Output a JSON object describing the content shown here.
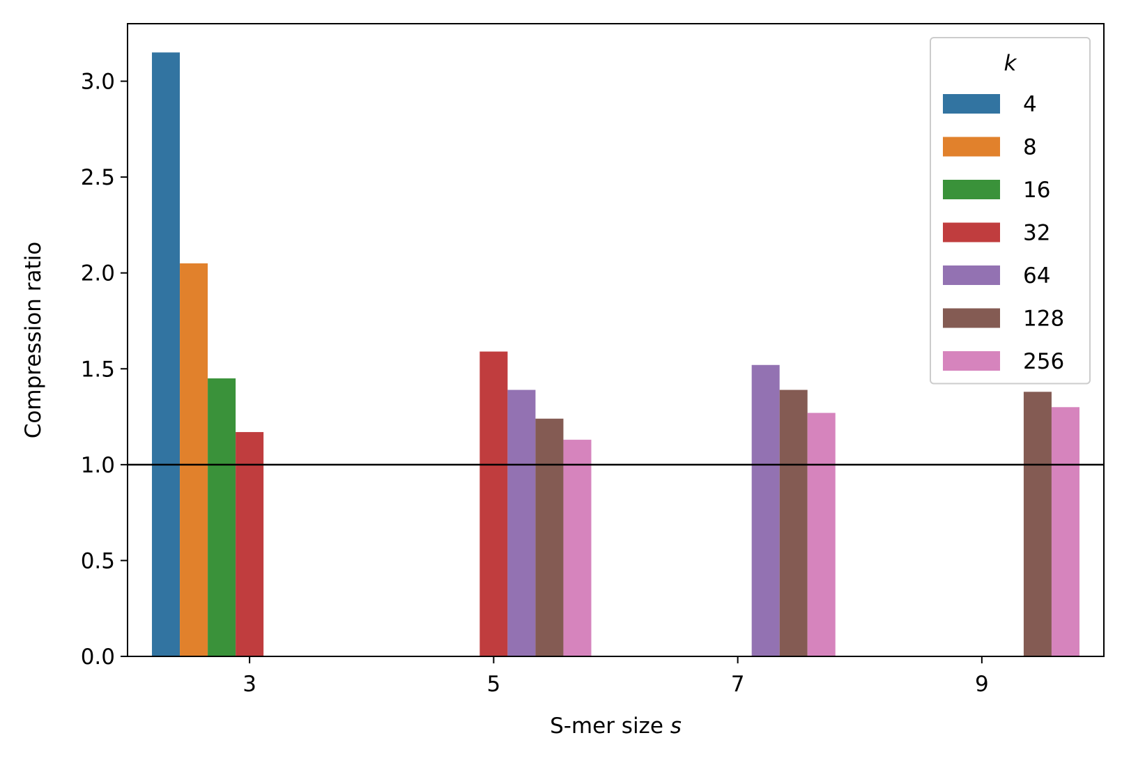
{
  "chart_data": {
    "type": "bar",
    "categories": [
      "3",
      "5",
      "7",
      "9"
    ],
    "xlabel_text": "S-mer size ",
    "xlabel_var": "s",
    "ylabel": "Compression ratio",
    "ylim": [
      0,
      3.3
    ],
    "yticks": [
      "0.0",
      "0.5",
      "1.0",
      "1.5",
      "2.0",
      "2.5",
      "3.0"
    ],
    "reference_line": 1.0,
    "legend_title": "k",
    "legend_position": "top-right",
    "grid": false,
    "series": [
      {
        "name": "4",
        "color": "#3274a1",
        "values": [
          3.15,
          null,
          null,
          null
        ]
      },
      {
        "name": "8",
        "color": "#e1812c",
        "values": [
          2.05,
          null,
          null,
          null
        ]
      },
      {
        "name": "16",
        "color": "#3a923a",
        "values": [
          1.45,
          null,
          null,
          null
        ]
      },
      {
        "name": "32",
        "color": "#c03d3e",
        "values": [
          1.17,
          1.59,
          null,
          null
        ]
      },
      {
        "name": "64",
        "color": "#9372b2",
        "values": [
          null,
          1.39,
          1.52,
          null
        ]
      },
      {
        "name": "128",
        "color": "#845b53",
        "values": [
          null,
          1.24,
          1.39,
          1.38
        ]
      },
      {
        "name": "256",
        "color": "#d684bd",
        "values": [
          null,
          1.13,
          1.27,
          1.3
        ]
      }
    ]
  }
}
